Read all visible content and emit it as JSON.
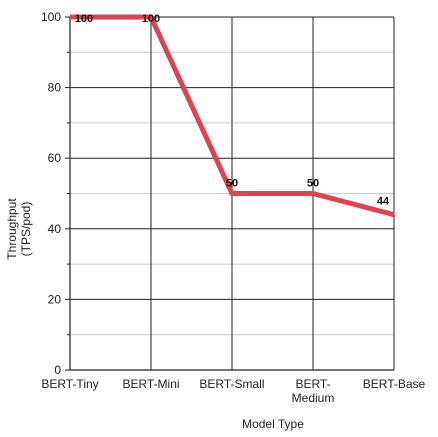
{
  "chart_data": {
    "type": "line",
    "categories": [
      [
        "BERT-Tiny"
      ],
      [
        "BERT-Mini"
      ],
      [
        "BERT-Small"
      ],
      [
        "BERT-",
        "Medium"
      ],
      [
        "BERT-Base"
      ]
    ],
    "series": [
      {
        "values": [
          100,
          100,
          50,
          50,
          44
        ],
        "color": "#e0424f"
      }
    ],
    "data_labels": [
      "100",
      "100",
      "50",
      "50",
      "44"
    ],
    "xlabel": "Model Type",
    "ylabel": [
      "Throughput",
      "(TPS/pod)"
    ],
    "ylim": [
      0,
      100
    ],
    "yticks": [
      0,
      20,
      40,
      60,
      80,
      100
    ],
    "ytick_labels": [
      "0",
      "20",
      "40",
      "60",
      "80",
      "100"
    ],
    "minor_ytick_step": 10,
    "grid": true,
    "legend": "none"
  }
}
